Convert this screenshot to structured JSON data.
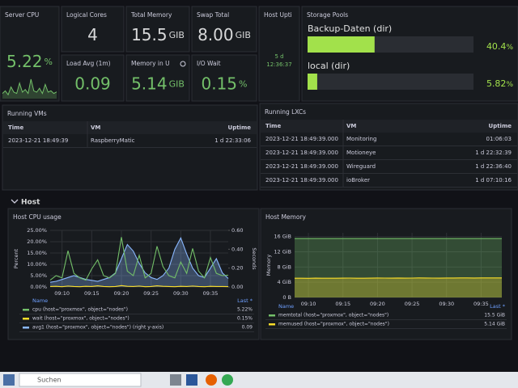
{
  "stats": [
    {
      "title": "Server CPU",
      "value": "5.22",
      "unit": "%",
      "color": "#73bf69",
      "sparkline": [
        4,
        6,
        3,
        9,
        5,
        4,
        12,
        5,
        7,
        4,
        15,
        6,
        5,
        8,
        4,
        11,
        5,
        6,
        4,
        5.22
      ]
    },
    {
      "title": "Logical Cores",
      "value": "4",
      "color": "#d8d9da"
    },
    {
      "title": "Total Memory",
      "value": "15.5",
      "unit": "GIB",
      "color": "#d8d9da"
    },
    {
      "title": "Swap Total",
      "value": "8.00",
      "unit": "GIB",
      "color": "#d8d9da"
    },
    {
      "title": "Host Upti",
      "value_lines": [
        "5 d",
        "12:36:37"
      ],
      "color": "#73bf69"
    },
    {
      "title": "Load Avg (1m)",
      "value": "0.09",
      "color": "#73bf69"
    },
    {
      "title": "Memory in U",
      "value": "5.14",
      "unit": "GIB",
      "color": "#73bf69"
    },
    {
      "title": "I/O Wait",
      "value": "0.15",
      "unit": "%",
      "color": "#73bf69"
    }
  ],
  "storage_pools": {
    "title": "Storage Pools",
    "items": [
      {
        "name": "Backup-Daten (dir)",
        "value": 40.4,
        "unit": "%"
      },
      {
        "name": "local (dir)",
        "value": 5.82,
        "unit": "%"
      }
    ]
  },
  "running_vms": {
    "title": "Running VMs",
    "columns": [
      "Time",
      "VM",
      "Uptime"
    ],
    "rows": [
      [
        "2023-12-21 18:49:39",
        "RaspberryMatic",
        "1 d 22:33:06"
      ]
    ]
  },
  "running_lxcs": {
    "title": "Running LXCs",
    "columns": [
      "Time",
      "VM",
      "Uptime"
    ],
    "rows": [
      [
        "2023-12-21 18:49:39.000",
        "Monitoring",
        "01:06:03"
      ],
      [
        "2023-12-21 18:49:39.000",
        "Motioneye",
        "1 d 22:32:39"
      ],
      [
        "2023-12-21 18:49:39.000",
        "Wireguard",
        "1 d 22:36:40"
      ],
      [
        "2023-12-21 18:49:39.000",
        "ioBroker",
        "1 d 07:10:16"
      ]
    ]
  },
  "row_header": "Host",
  "chart_data": [
    {
      "type": "line",
      "title": "Host CPU usage",
      "ylabel": "Percent",
      "y2label": "Seconds",
      "x": [
        548,
        549,
        550,
        551,
        552,
        553,
        554,
        555,
        556,
        557,
        558,
        559,
        560,
        561,
        562,
        563,
        564,
        565,
        566,
        567,
        568,
        569,
        570,
        571,
        572,
        573,
        574,
        575,
        576,
        577,
        578
      ],
      "xlim": [
        548,
        578
      ],
      "xticks": [
        {
          "value": 550,
          "label": "09:10"
        },
        {
          "value": 555,
          "label": "09:15"
        },
        {
          "value": 560,
          "label": "09:20"
        },
        {
          "value": 565,
          "label": "09:25"
        },
        {
          "value": 570,
          "label": "09:30"
        },
        {
          "value": 575,
          "label": "09:35"
        }
      ],
      "ylim": [
        0,
        25
      ],
      "yticks": [
        {
          "value": 0,
          "label": "0.00%"
        },
        {
          "value": 5,
          "label": "5.00%"
        },
        {
          "value": 10,
          "label": "10.00%"
        },
        {
          "value": 15,
          "label": "15.00%"
        },
        {
          "value": 20,
          "label": "20.00%"
        },
        {
          "value": 25,
          "label": "25.00%"
        }
      ],
      "y2lim": [
        0,
        0.6
      ],
      "y2ticks": [
        {
          "value": 0,
          "label": "0.00"
        },
        {
          "value": 0.2,
          "label": "0.20"
        },
        {
          "value": 0.4,
          "label": "0.40"
        },
        {
          "value": 0.6,
          "label": "0.60"
        }
      ],
      "grid": true,
      "legend_header": [
        "Name",
        "Last *"
      ],
      "series": [
        {
          "name": "cpu (host=\"proxmox\", object=\"nodes\")",
          "color": "#73bf69",
          "last": "5.22%",
          "values": [
            3,
            5,
            4,
            16,
            6,
            4,
            3,
            8,
            12,
            5,
            4,
            6,
            22,
            7,
            5,
            14,
            4,
            6,
            18,
            9,
            5,
            4,
            11,
            6,
            17,
            7,
            4,
            13,
            6,
            5,
            5.22
          ]
        },
        {
          "name": "wait (host=\"proxmox\", object=\"nodes\")",
          "color": "#fade2a",
          "last": "0.15%",
          "values": [
            0.2,
            0.3,
            0.1,
            0.4,
            0.2,
            0.1,
            0.3,
            0.2,
            0.5,
            0.2,
            0.1,
            0.2,
            0.6,
            0.3,
            0.2,
            0.4,
            0.1,
            0.2,
            0.5,
            0.3,
            0.2,
            0.1,
            0.3,
            0.2,
            0.4,
            0.2,
            0.1,
            0.3,
            0.2,
            0.2,
            0.15
          ]
        },
        {
          "name": "avg1 (host=\"proxmox\", object=\"nodes\") (right y-axis)",
          "color": "#8ab8ff",
          "axis": "y2",
          "fill": true,
          "last": "0.09",
          "values": [
            0.05,
            0.06,
            0.08,
            0.1,
            0.12,
            0.1,
            0.08,
            0.07,
            0.06,
            0.08,
            0.1,
            0.15,
            0.3,
            0.45,
            0.38,
            0.25,
            0.15,
            0.1,
            0.08,
            0.12,
            0.2,
            0.4,
            0.52,
            0.35,
            0.2,
            0.12,
            0.1,
            0.2,
            0.3,
            0.15,
            0.09
          ]
        }
      ]
    },
    {
      "type": "line",
      "title": "Host Memory",
      "ylabel": "Memory",
      "x": [
        548,
        549,
        550,
        551,
        552,
        553,
        554,
        555,
        556,
        557,
        558,
        559,
        560,
        561,
        562,
        563,
        564,
        565,
        566,
        567,
        568,
        569,
        570,
        571,
        572,
        573,
        574,
        575,
        576,
        577,
        578
      ],
      "xlim": [
        548,
        578
      ],
      "xticks": [
        {
          "value": 550,
          "label": "09:10"
        },
        {
          "value": 555,
          "label": "09:15"
        },
        {
          "value": 560,
          "label": "09:20"
        },
        {
          "value": 565,
          "label": "09:25"
        },
        {
          "value": 570,
          "label": "09:30"
        },
        {
          "value": 575,
          "label": "09:35"
        }
      ],
      "ylim": [
        0,
        17
      ],
      "yticks": [
        {
          "value": 0,
          "label": "0 B"
        },
        {
          "value": 4,
          "label": "4 GiB"
        },
        {
          "value": 8,
          "label": "8 GiB"
        },
        {
          "value": 12,
          "label": "12 GiB"
        },
        {
          "value": 16,
          "label": "16 GiB"
        }
      ],
      "grid": true,
      "legend_header": [
        "Name",
        "Last *"
      ],
      "series": [
        {
          "name": "memtotal (host=\"proxmox\", object=\"nodes\")",
          "color": "#73bf69",
          "fill": true,
          "last": "15.5 GiB",
          "values": [
            15.5,
            15.5,
            15.5,
            15.5,
            15.5,
            15.5,
            15.5,
            15.5,
            15.5,
            15.5,
            15.5,
            15.5,
            15.5,
            15.5,
            15.5,
            15.5,
            15.5,
            15.5,
            15.5,
            15.5,
            15.5,
            15.5,
            15.5,
            15.5,
            15.5,
            15.5,
            15.5,
            15.5,
            15.5,
            15.5,
            15.5
          ]
        },
        {
          "name": "memused (host=\"proxmox\", object=\"nodes\")",
          "color": "#fade2a",
          "fill": true,
          "last": "5.14 GiB",
          "values": [
            5.05,
            5.06,
            5.04,
            5.08,
            5.07,
            5.05,
            5.06,
            5.09,
            5.1,
            5.07,
            5.06,
            5.08,
            5.12,
            5.1,
            5.09,
            5.11,
            5.08,
            5.1,
            5.13,
            5.12,
            5.1,
            5.09,
            5.11,
            5.12,
            5.14,
            5.13,
            5.12,
            5.13,
            5.15,
            5.13,
            5.14
          ]
        }
      ]
    }
  ],
  "taskbar": {
    "search": "Suchen"
  }
}
